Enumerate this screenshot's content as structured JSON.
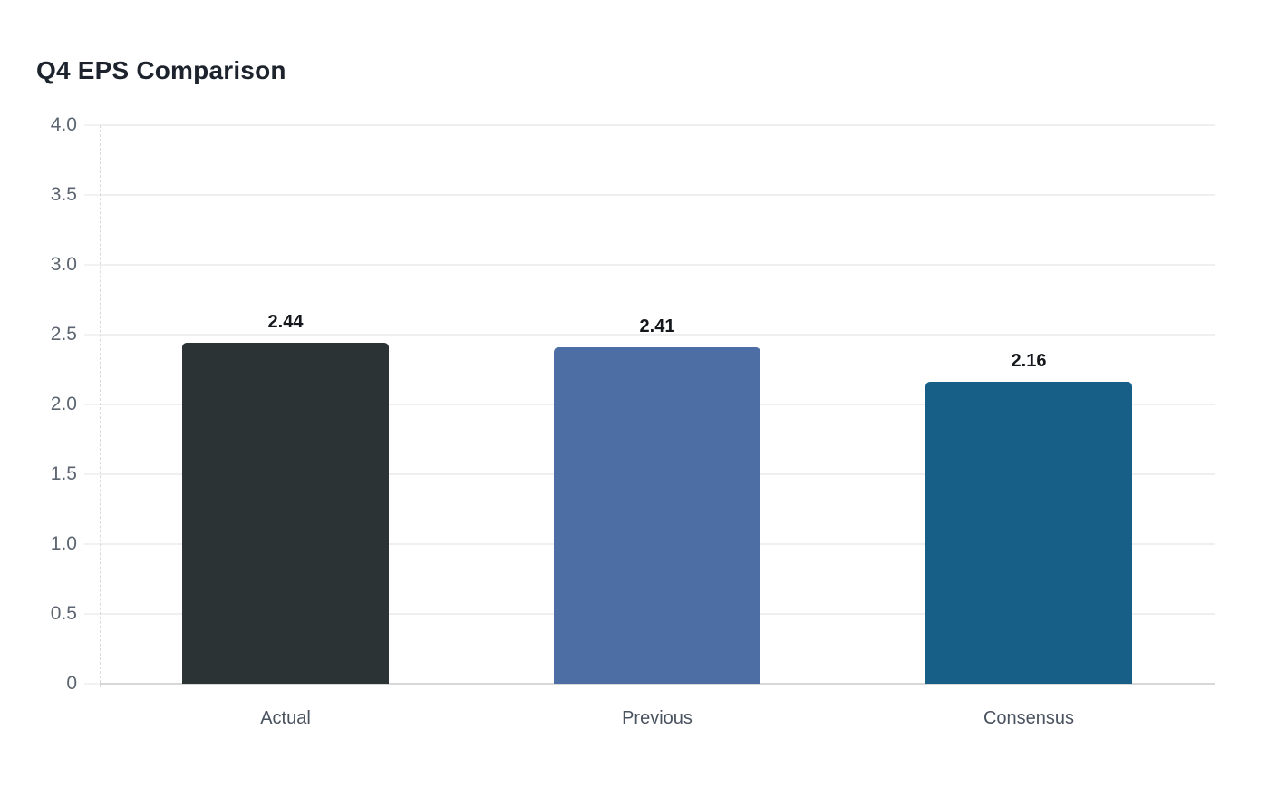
{
  "chart_data": {
    "type": "bar",
    "title": "Q4 EPS Comparison",
    "categories": [
      "Actual",
      "Previous",
      "Consensus"
    ],
    "values": [
      2.44,
      2.41,
      2.16
    ],
    "value_labels": [
      "2.44",
      "2.41",
      "2.16"
    ],
    "bar_colors": [
      "#2b3335",
      "#4c6ea5",
      "#175f87"
    ],
    "xlabel": "",
    "ylabel": "",
    "ylim": [
      0,
      4
    ],
    "y_tick_step": 0.5,
    "y_tick_labels": [
      "4.0",
      "3.5",
      "3.0",
      "2.5",
      "2.0",
      "1.5",
      "1.0",
      "0.5",
      "0"
    ],
    "grid": "horizontal-only",
    "legend_position": "none",
    "colors": {
      "background": "#ffffff",
      "title_text": "#1d232c",
      "axis_tick_text": "#5c6570",
      "category_text": "#49525f",
      "value_label_text": "#14171b",
      "gridline": "#efefef",
      "baseline": "#d7d7d7",
      "axis_dashed_line": "#d9d9d9"
    }
  }
}
